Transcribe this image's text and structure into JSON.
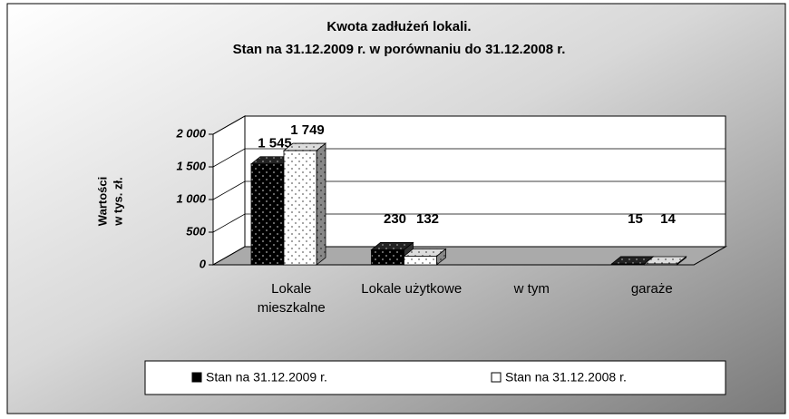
{
  "chart_data": {
    "type": "bar3d",
    "title": "Kwota zadłużeń lokali.",
    "subtitle": "Stan na 31.12.2009 r. w porównaniu do 31.12.2008 r.",
    "y_label": [
      "Wartości",
      "w tys. zł."
    ],
    "categories": [
      "Lokale mieszkalne",
      "Lokale użytkowe",
      "w tym",
      "garaże"
    ],
    "series": [
      {
        "name": "Stan na 31.12.2009 r.",
        "color": "#000000",
        "values": [
          1545,
          230,
          null,
          15
        ],
        "value_labels": [
          "1 545",
          "230",
          null,
          "15"
        ]
      },
      {
        "name": "Stan na 31.12.2008 r.",
        "color": "#ffffff",
        "values": [
          1749,
          132,
          null,
          14
        ],
        "value_labels": [
          "1 749",
          "132",
          null,
          "14"
        ]
      }
    ],
    "ylim": [
      0,
      2000
    ],
    "yticks": [
      0,
      500,
      {
        "value": 1000,
        "label": "1 000"
      },
      {
        "value": 1500,
        "label": "1 500"
      },
      {
        "value": 2000,
        "label": "2 000"
      }
    ],
    "grid": true
  }
}
